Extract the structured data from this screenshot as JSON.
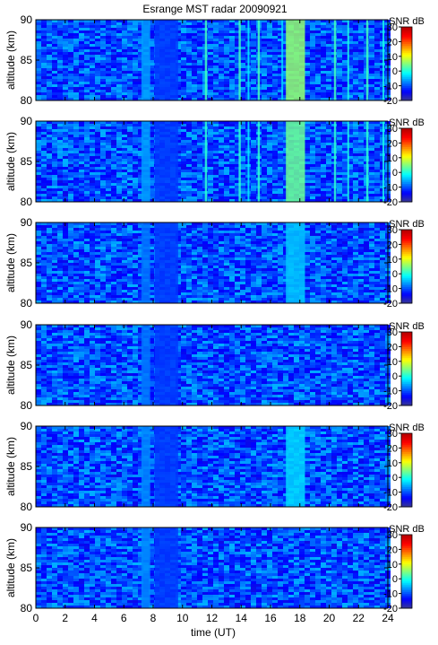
{
  "chart_data": {
    "type": "heatmap",
    "title": "Esrange MST radar 20090921",
    "xlabel": "time (UT)",
    "ylabel": "altitude (km)",
    "xlim": [
      0,
      24
    ],
    "ylim": [
      80,
      90
    ],
    "x_ticks": [
      0,
      2,
      4,
      6,
      8,
      10,
      12,
      14,
      16,
      18,
      20,
      22,
      24
    ],
    "y_ticks": [
      80,
      85,
      90
    ],
    "colorbar": {
      "label": "SNR dB",
      "range": [
        -20,
        30
      ],
      "ticks": [
        -20,
        -10,
        0,
        10,
        20,
        30
      ],
      "colors": [
        "#3a3a8c",
        "#0000ff",
        "#0080ff",
        "#00ffff",
        "#80ff80",
        "#ffff00",
        "#ff8000",
        "#ff0000",
        "#b40000"
      ]
    },
    "background_snr": -10,
    "panels": [
      {
        "vertical_features": [
          {
            "t": 7.5,
            "w": 0.6,
            "snr": -6
          },
          {
            "t": 8.9,
            "w": 1.6,
            "snr": -11
          },
          {
            "t": 11.6,
            "w": 0.15,
            "snr": 2
          },
          {
            "t": 13.9,
            "w": 0.15,
            "snr": 2
          },
          {
            "t": 14.5,
            "w": 0.12,
            "snr": -2
          },
          {
            "t": 15.2,
            "w": 0.15,
            "snr": 2
          },
          {
            "t": 16.8,
            "w": 0.12,
            "snr": -3
          },
          {
            "t": 17.7,
            "w": 1.3,
            "snr": 6
          },
          {
            "t": 20.4,
            "w": 0.15,
            "snr": 2
          },
          {
            "t": 21.3,
            "w": 0.12,
            "snr": 0
          },
          {
            "t": 22.6,
            "w": 0.15,
            "snr": 2
          },
          {
            "t": 23.7,
            "w": 0.12,
            "snr": 0
          }
        ]
      },
      {
        "vertical_features": [
          {
            "t": 7.5,
            "w": 0.6,
            "snr": -6
          },
          {
            "t": 8.9,
            "w": 1.6,
            "snr": -11
          },
          {
            "t": 11.6,
            "w": 0.15,
            "snr": 1
          },
          {
            "t": 13.9,
            "w": 0.15,
            "snr": 1
          },
          {
            "t": 14.5,
            "w": 0.12,
            "snr": -2
          },
          {
            "t": 15.2,
            "w": 0.15,
            "snr": 1
          },
          {
            "t": 17.7,
            "w": 1.3,
            "snr": 4
          },
          {
            "t": 20.4,
            "w": 0.15,
            "snr": 1
          },
          {
            "t": 21.3,
            "w": 0.12,
            "snr": 0
          },
          {
            "t": 22.6,
            "w": 0.15,
            "snr": 1
          },
          {
            "t": 23.7,
            "w": 0.12,
            "snr": 0
          }
        ]
      },
      {
        "vertical_features": [
          {
            "t": 7.5,
            "w": 0.6,
            "snr": -8
          },
          {
            "t": 8.9,
            "w": 1.6,
            "snr": -11
          },
          {
            "t": 17.7,
            "w": 1.3,
            "snr": -4
          }
        ]
      },
      {
        "vertical_features": [
          {
            "t": 7.5,
            "w": 0.6,
            "snr": -8
          },
          {
            "t": 8.9,
            "w": 1.6,
            "snr": -11
          }
        ]
      },
      {
        "vertical_features": [
          {
            "t": 7.5,
            "w": 0.6,
            "snr": -7
          },
          {
            "t": 8.9,
            "w": 1.6,
            "snr": -11
          },
          {
            "t": 17.7,
            "w": 1.3,
            "snr": -3
          }
        ]
      },
      {
        "vertical_features": [
          {
            "t": 7.5,
            "w": 0.6,
            "snr": -7
          },
          {
            "t": 8.9,
            "w": 1.6,
            "snr": -11
          }
        ]
      }
    ]
  }
}
